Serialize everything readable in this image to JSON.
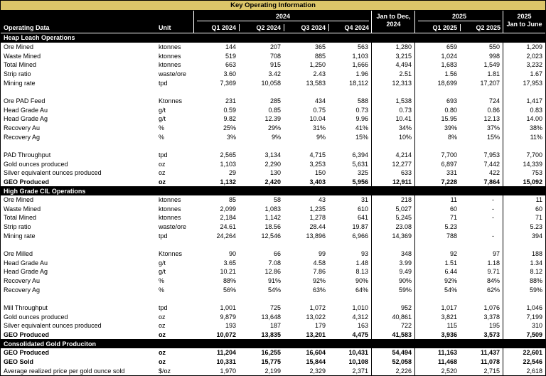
{
  "banner": {
    "title": "Key Operating Information"
  },
  "colors": {
    "banner_bg": "#dcc669",
    "header_bg": "#000000",
    "header_text": "#ffffff",
    "section_bg": "#000000",
    "body_text": "#000000"
  },
  "header": {
    "operating_data": "Operating Data",
    "unit": "Unit",
    "group_2024": "2024",
    "group_2025": "2025",
    "jan_dec_line1": "Jan to Dec,",
    "jan_dec_line2": "2024",
    "jan_june_line1": "2025",
    "jan_june_line2": "Jan to June",
    "quarters_2024": [
      "Q1 2024",
      "Q2 2024",
      "Q3 2024",
      "Q4 2024"
    ],
    "quarters_2025": [
      "Q1 2025",
      "Q2 2025"
    ]
  },
  "table": {
    "columns": [
      "Operating Data",
      "Unit",
      "Q1 2024",
      "Q2 2024",
      "Q3 2024",
      "Q4 2024",
      "Jan to Dec, 2024",
      "Q1 2025",
      "Q2 2025",
      "2025 Jan to June"
    ],
    "rows": [
      {
        "type": "section",
        "label": "Heap Leach Operations"
      },
      {
        "type": "data",
        "name": "Ore Mined",
        "unit": "ktonnes",
        "values": [
          "144",
          "207",
          "365",
          "563",
          "1,280",
          "659",
          "550",
          "1,209"
        ]
      },
      {
        "type": "data",
        "name": "Waste Mined",
        "unit": "ktonnes",
        "values": [
          "519",
          "708",
          "885",
          "1,103",
          "3,215",
          "1,024",
          "998",
          "2,023"
        ]
      },
      {
        "type": "data",
        "name": "Total Mined",
        "unit": "ktonnes",
        "values": [
          "663",
          "915",
          "1,250",
          "1,666",
          "4,494",
          "1,683",
          "1,549",
          "3,232"
        ]
      },
      {
        "type": "data",
        "name": "Strip ratio",
        "unit": "waste/ore",
        "values": [
          "3.60",
          "3.42",
          "2.43",
          "1.96",
          "2.51",
          "1.56",
          "1.81",
          "1.67"
        ]
      },
      {
        "type": "data",
        "name": "Mining rate",
        "unit": "tpd",
        "values": [
          "7,369",
          "10,058",
          "13,583",
          "18,112",
          "12,313",
          "18,699",
          "17,207",
          "17,953"
        ]
      },
      {
        "type": "blank"
      },
      {
        "type": "data",
        "name": "Ore PAD Feed",
        "unit": "Ktonnes",
        "values": [
          "231",
          "285",
          "434",
          "588",
          "1,538",
          "693",
          "724",
          "1,417"
        ]
      },
      {
        "type": "data",
        "name": "Head Grade Au",
        "unit": "g/t",
        "values": [
          "0.59",
          "0.85",
          "0.75",
          "0.73",
          "0.73",
          "0.80",
          "0.86",
          "0.83"
        ]
      },
      {
        "type": "data",
        "name": "Head Grade Ag",
        "unit": "g/t",
        "values": [
          "9.82",
          "12.39",
          "10.04",
          "9.96",
          "10.41",
          "15.95",
          "12.13",
          "14.00"
        ]
      },
      {
        "type": "data",
        "name": "Recovery Au",
        "unit": "%",
        "values": [
          "25%",
          "29%",
          "31%",
          "41%",
          "34%",
          "39%",
          "37%",
          "38%"
        ]
      },
      {
        "type": "data",
        "name": "Recovery Ag",
        "unit": "%",
        "values": [
          "3%",
          "9%",
          "9%",
          "15%",
          "10%",
          "8%",
          "15%",
          "11%"
        ]
      },
      {
        "type": "blank"
      },
      {
        "type": "data",
        "name": "PAD Throughput",
        "unit": "tpd",
        "values": [
          "2,565",
          "3,134",
          "4,715",
          "6,394",
          "4,214",
          "7,700",
          "7,953",
          "7,700"
        ]
      },
      {
        "type": "data",
        "name": "Gold ounces produced",
        "unit": "oz",
        "values": [
          "1,103",
          "2,290",
          "3,253",
          "5,631",
          "12,277",
          "6,897",
          "7,442",
          "14,339"
        ]
      },
      {
        "type": "data",
        "name": "Silver equivalent ounces produced",
        "unit": "oz",
        "values": [
          "29",
          "130",
          "150",
          "325",
          "633",
          "331",
          "422",
          "753"
        ]
      },
      {
        "type": "data",
        "bold": true,
        "name": "GEO Produced",
        "unit": "oz",
        "values": [
          "1,132",
          "2,420",
          "3,403",
          "5,956",
          "12,911",
          "7,228",
          "7,864",
          "15,092"
        ]
      },
      {
        "type": "section",
        "label": "High Grade CIL Operations"
      },
      {
        "type": "data",
        "name": "Ore Mined",
        "unit": "ktonnes",
        "values": [
          "85",
          "58",
          "43",
          "31",
          "218",
          "11",
          "-",
          "11"
        ]
      },
      {
        "type": "data",
        "name": "Waste Mined",
        "unit": "ktonnes",
        "values": [
          "2,099",
          "1,083",
          "1,235",
          "610",
          "5,027",
          "60",
          "-",
          "60"
        ]
      },
      {
        "type": "data",
        "name": "Total Mined",
        "unit": "ktonnes",
        "values": [
          "2,184",
          "1,142",
          "1,278",
          "641",
          "5,245",
          "71",
          "-",
          "71"
        ]
      },
      {
        "type": "data",
        "name": "Strip ratio",
        "unit": "waste/ore",
        "values": [
          "24.61",
          "18.56",
          "28.44",
          "19.87",
          "23.08",
          "5.23",
          "",
          "5.23"
        ]
      },
      {
        "type": "data",
        "name": "Mining rate",
        "unit": "tpd",
        "values": [
          "24,264",
          "12,546",
          "13,896",
          "6,966",
          "14,369",
          "788",
          "-",
          "394"
        ]
      },
      {
        "type": "blank"
      },
      {
        "type": "data",
        "name": "Ore Milled",
        "unit": "Ktonnes",
        "values": [
          "90",
          "66",
          "99",
          "93",
          "348",
          "92",
          "97",
          "188"
        ]
      },
      {
        "type": "data",
        "name": "Head Grade Au",
        "unit": "g/t",
        "values": [
          "3.65",
          "7.08",
          "4.58",
          "1.48",
          "3.99",
          "1.51",
          "1.18",
          "1.34"
        ]
      },
      {
        "type": "data",
        "name": "Head Grade Ag",
        "unit": "g/t",
        "values": [
          "10.21",
          "12.86",
          "7.86",
          "8.13",
          "9.49",
          "6.44",
          "9.71",
          "8.12"
        ]
      },
      {
        "type": "data",
        "name": "Recovery Au",
        "unit": "%",
        "values": [
          "88%",
          "91%",
          "92%",
          "90%",
          "90%",
          "92%",
          "84%",
          "88%"
        ]
      },
      {
        "type": "data",
        "name": "Recovery Ag",
        "unit": "%",
        "values": [
          "56%",
          "54%",
          "63%",
          "64%",
          "59%",
          "54%",
          "62%",
          "59%"
        ]
      },
      {
        "type": "blank"
      },
      {
        "type": "data",
        "name": "Mill Throughput",
        "unit": "tpd",
        "values": [
          "1,001",
          "725",
          "1,072",
          "1,010",
          "952",
          "1,017",
          "1,076",
          "1,046"
        ]
      },
      {
        "type": "data",
        "name": "Gold ounces produced",
        "unit": "oz",
        "values": [
          "9,879",
          "13,648",
          "13,022",
          "4,312",
          "40,861",
          "3,821",
          "3,378",
          "7,199"
        ]
      },
      {
        "type": "data",
        "name": "Silver equivalent ounces produced",
        "unit": "oz",
        "values": [
          "193",
          "187",
          "179",
          "163",
          "722",
          "115",
          "195",
          "310"
        ]
      },
      {
        "type": "data",
        "bold": true,
        "name": "GEO Produced",
        "unit": "oz",
        "values": [
          "10,072",
          "13,835",
          "13,201",
          "4,475",
          "41,583",
          "3,936",
          "3,573",
          "7,509"
        ]
      },
      {
        "type": "section",
        "label": "Consolidated Gold Produciton"
      },
      {
        "type": "data",
        "bold": true,
        "name": "GEO Produced",
        "unit": "oz",
        "values": [
          "11,204",
          "16,255",
          "16,604",
          "10,431",
          "54,494",
          "11,163",
          "11,437",
          "22,601"
        ]
      },
      {
        "type": "data",
        "bold": true,
        "name": "GEO Sold",
        "unit": "oz",
        "values": [
          "10,331",
          "15,775",
          "15,844",
          "10,108",
          "52,058",
          "11,468",
          "11,078",
          "22,546"
        ]
      },
      {
        "type": "data",
        "name": "Average realized price per gold ounce sold",
        "unit": "$/oz",
        "values": [
          "1,970",
          "2,199",
          "2,329",
          "2,371",
          "2,226",
          "2,520",
          "2,715",
          "2,618"
        ]
      }
    ]
  }
}
